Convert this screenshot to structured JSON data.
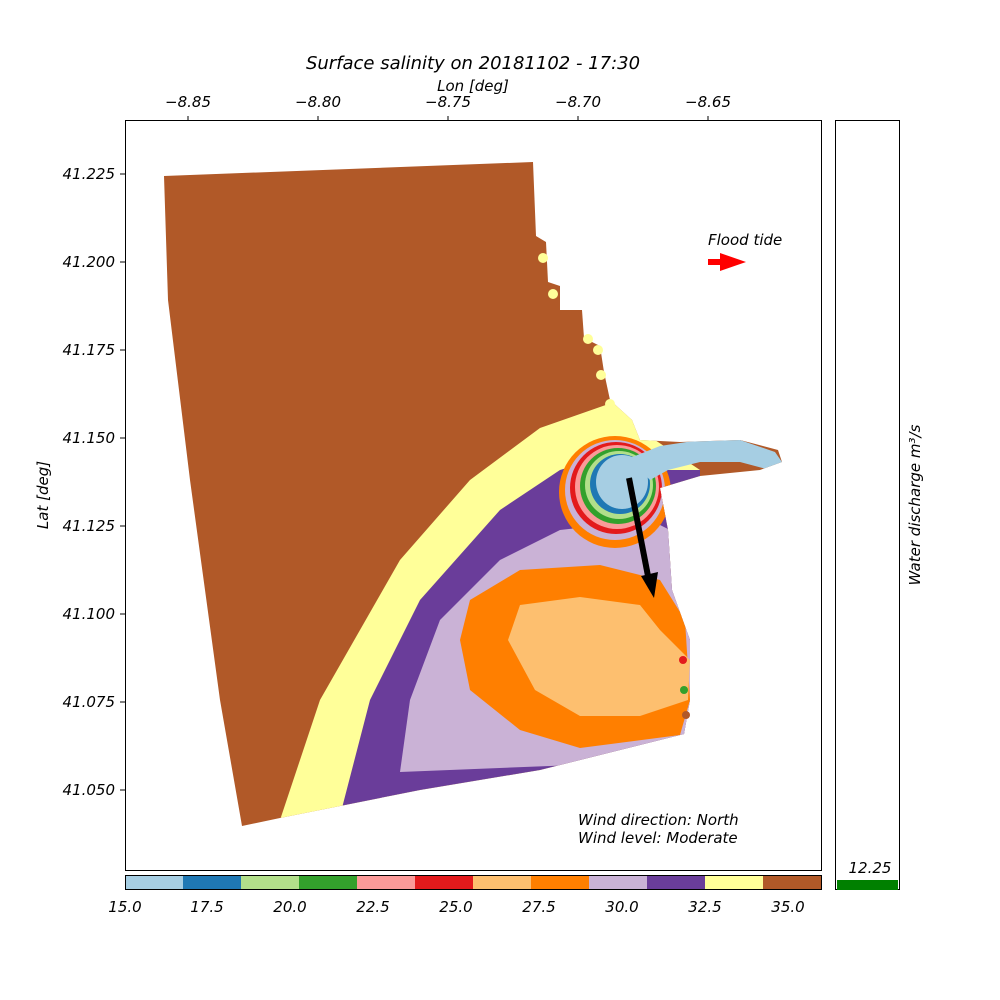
{
  "title": "Surface salinity on 20181102 - 17:30",
  "xlabel": "Lon [deg]",
  "ylabel": "Lat [deg]",
  "x_ticks": [
    "−8.85",
    "−8.80",
    "−8.75",
    "−8.70",
    "−8.65"
  ],
  "y_ticks": [
    "41.225",
    "41.200",
    "41.175",
    "41.150",
    "41.125",
    "41.100",
    "41.075",
    "41.050"
  ],
  "annotations": {
    "tide_label": "Flood tide",
    "wind_direction": "Wind direction: North",
    "wind_level": "Wind level: Moderate"
  },
  "colorbar": {
    "tick_labels": [
      "15.0",
      "17.5",
      "20.0",
      "22.5",
      "25.0",
      "27.5",
      "30.0",
      "32.5",
      "35.0"
    ],
    "colors": [
      "#a6cee3",
      "#1f78b4",
      "#b2df8a",
      "#33a02c",
      "#fb9a99",
      "#e31a1c",
      "#fdbf6f",
      "#ff7f00",
      "#cab2d6",
      "#6a3d9a",
      "#ffff99",
      "#b15928"
    ]
  },
  "discharge": {
    "label": "Water discharge m³/s",
    "value": "12.25",
    "bar_color": "#008000"
  },
  "chart_data": {
    "type": "scatter",
    "title": "Surface salinity on 20181102 - 17:30",
    "xlabel": "Lon [deg]",
    "ylabel": "Lat [deg]",
    "xlim": [
      -8.875,
      -8.605
    ],
    "ylim": [
      41.026,
      41.24
    ],
    "colorbar_range": [
      15.0,
      36.0
    ],
    "discharge_m3s": 12.25,
    "wind_arrow_direction": "south (wind from North)",
    "tide_arrow_direction": "east"
  }
}
